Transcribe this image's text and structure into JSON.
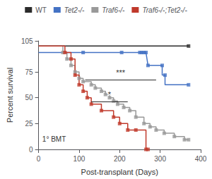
{
  "chart_data": {
    "type": "line",
    "xlabel": "Post-transplant (Days)",
    "ylabel": "Percent survival",
    "xlim": [
      0,
      400
    ],
    "ylim": [
      0,
      105
    ],
    "xticks": [
      0,
      100,
      200,
      300,
      400
    ],
    "yticks": [
      0,
      25,
      50,
      75,
      100
    ],
    "grid": false,
    "legend": "top",
    "marker": "square",
    "annotations": [
      {
        "text": "1° BMT",
        "x": 10,
        "y": 6
      }
    ],
    "significance": [
      {
        "x1": 130,
        "x2": 220,
        "y": 46,
        "text": "*"
      },
      {
        "x1": 115,
        "x2": 290,
        "y": 67,
        "text": "***"
      }
    ],
    "series": [
      {
        "name": "WT",
        "color": "#2b2b2b",
        "x": [
          0,
          370
        ],
        "values": [
          100,
          100
        ],
        "marker_x": [
          370
        ],
        "marker_values": [
          100
        ]
      },
      {
        "name": "Tet2-/-",
        "color": "#4472c4",
        "x": [
          0,
          110,
          110,
          205,
          205,
          250,
          250,
          255,
          255,
          260,
          260,
          265,
          265,
          270,
          270,
          305,
          305,
          312,
          312,
          370
        ],
        "values": [
          93.75,
          93.75,
          93.75,
          93.75,
          93.75,
          93.75,
          93.75,
          93.75,
          93.75,
          93.75,
          93.75,
          93.75,
          93.75,
          81.25,
          81.25,
          81.25,
          71.875,
          71.875,
          62.5,
          62.5
        ],
        "marker_x": [
          110,
          205,
          250,
          255,
          260,
          265,
          270,
          305,
          312,
          370
        ],
        "marker_values": [
          93.75,
          93.75,
          93.75,
          93.75,
          93.75,
          93.75,
          81.25,
          81.25,
          71.875,
          62.5
        ]
      },
      {
        "name": "Traf6-/-",
        "color": "#999999",
        "x": [
          0,
          60,
          60,
          70,
          70,
          80,
          80,
          90,
          90,
          100,
          100,
          110,
          110,
          130,
          130,
          140,
          140,
          155,
          155,
          165,
          165,
          175,
          175,
          185,
          185,
          195,
          195,
          210,
          210,
          225,
          225,
          240,
          240,
          260,
          260,
          275,
          275,
          290,
          290,
          310,
          310,
          335,
          335,
          360,
          360,
          370
        ],
        "values": [
          100,
          100,
          93.75,
          93.75,
          87.5,
          87.5,
          81.25,
          81.25,
          75.0,
          75.0,
          68.75,
          68.75,
          65.625,
          65.625,
          62.5,
          62.5,
          59.375,
          59.375,
          56.25,
          56.25,
          53.125,
          53.125,
          50.0,
          50.0,
          46.875,
          46.875,
          43.75,
          43.75,
          40.625,
          40.625,
          37.5,
          37.5,
          31.25,
          31.25,
          25.0,
          25.0,
          21.875,
          21.875,
          18.75,
          18.75,
          15.625,
          15.625,
          12.5,
          12.5,
          9.375,
          9.375
        ],
        "marker_x": [
          60,
          70,
          80,
          90,
          100,
          110,
          130,
          140,
          155,
          165,
          175,
          185,
          195,
          210,
          225,
          240,
          260,
          275,
          290,
          310,
          335,
          360,
          370
        ],
        "marker_values": [
          93.75,
          87.5,
          81.25,
          75.0,
          68.75,
          65.625,
          62.5,
          59.375,
          56.25,
          53.125,
          50.0,
          46.875,
          43.75,
          40.625,
          37.5,
          31.25,
          25.0,
          21.875,
          18.75,
          15.625,
          12.5,
          9.375,
          9.375
        ]
      },
      {
        "name": "Traf6-/-;Tet2-/-",
        "color": "#c0392b",
        "x": [
          0,
          65,
          65,
          80,
          80,
          90,
          90,
          100,
          100,
          110,
          110,
          120,
          120,
          130,
          130,
          155,
          155,
          185,
          185,
          200,
          200,
          220,
          220,
          240,
          240,
          265,
          265,
          270,
          270
        ],
        "values": [
          100,
          100,
          93.75,
          93.75,
          87.5,
          87.5,
          71.875,
          71.875,
          62.5,
          62.5,
          56.25,
          56.25,
          50.0,
          50.0,
          43.75,
          43.75,
          37.5,
          37.5,
          31.25,
          31.25,
          25.0,
          25.0,
          18.75,
          18.75,
          18.75,
          18.75,
          0.0,
          0.0,
          0.0
        ],
        "marker_x": [
          65,
          80,
          90,
          100,
          110,
          120,
          130,
          155,
          185,
          200,
          220,
          240,
          265,
          270
        ],
        "marker_values": [
          93.75,
          87.5,
          71.875,
          62.5,
          56.25,
          50.0,
          43.75,
          37.5,
          31.25,
          25.0,
          18.75,
          18.75,
          0.0,
          0.0
        ]
      }
    ]
  }
}
